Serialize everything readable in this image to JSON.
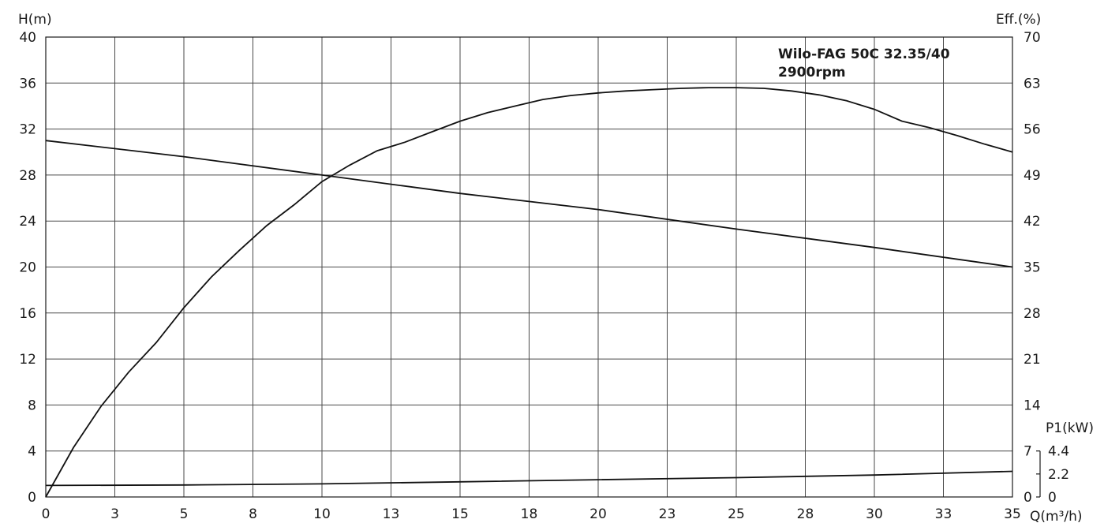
{
  "chart_data": {
    "type": "line",
    "title_line1": "Wilo-FAG 50C 32.35/40",
    "title_line2": "2900rpm",
    "xlabel": "Q(m³/h)",
    "ylabel_left": "H(m)",
    "ylabel_right_eff": "Eff.(%)",
    "ylabel_right_power": "P1(kW)",
    "xlim": [
      0,
      35
    ],
    "ylim_head": [
      0,
      40
    ],
    "ylim_eff": [
      0,
      70
    ],
    "x_ticks": [
      "0",
      "3",
      "5",
      "8",
      "10",
      "13",
      "15",
      "18",
      "20",
      "23",
      "25",
      "28",
      "30",
      "33",
      "35"
    ],
    "y_left_ticks": [
      "0",
      "4",
      "8",
      "12",
      "16",
      "20",
      "24",
      "28",
      "32",
      "36",
      "40"
    ],
    "y_eff_ticks": [
      "0",
      "7",
      "14",
      "21",
      "28",
      "35",
      "42",
      "49",
      "56",
      "63",
      "70"
    ],
    "y_power_ticks": [
      "0",
      "2.2",
      "4.4"
    ],
    "grid": true,
    "series": [
      {
        "axis": "head",
        "x": [
          0,
          5,
          10,
          15,
          20,
          25,
          30,
          35
        ],
        "y": [
          31.0,
          29.6,
          28.0,
          26.4,
          25.0,
          23.3,
          21.7,
          20.0
        ]
      },
      {
        "axis": "eff",
        "x": [
          0,
          1,
          2,
          3,
          4,
          5,
          6,
          7,
          8,
          9,
          10,
          11,
          12,
          13,
          14,
          15,
          16,
          17,
          18,
          19,
          20,
          21,
          22,
          23,
          24,
          25,
          26,
          27,
          28,
          29,
          30,
          31,
          32,
          33,
          34,
          35
        ],
        "y": [
          0,
          7.5,
          13.8,
          19.0,
          23.5,
          28.8,
          33.5,
          37.5,
          41.3,
          44.5,
          48.0,
          50.5,
          52.7,
          54.0,
          55.6,
          57.2,
          58.5,
          59.5,
          60.5,
          61.1,
          61.5,
          61.8,
          62.0,
          62.2,
          62.3,
          62.3,
          62.2,
          61.8,
          61.2,
          60.3,
          59.0,
          57.2,
          56.2,
          55.0,
          53.7,
          52.5
        ]
      },
      {
        "axis": "power",
        "x": [
          0,
          5,
          10,
          15,
          20,
          25,
          30,
          35
        ],
        "y": [
          1.1,
          1.15,
          1.25,
          1.45,
          1.65,
          1.85,
          2.1,
          2.45
        ]
      }
    ]
  }
}
